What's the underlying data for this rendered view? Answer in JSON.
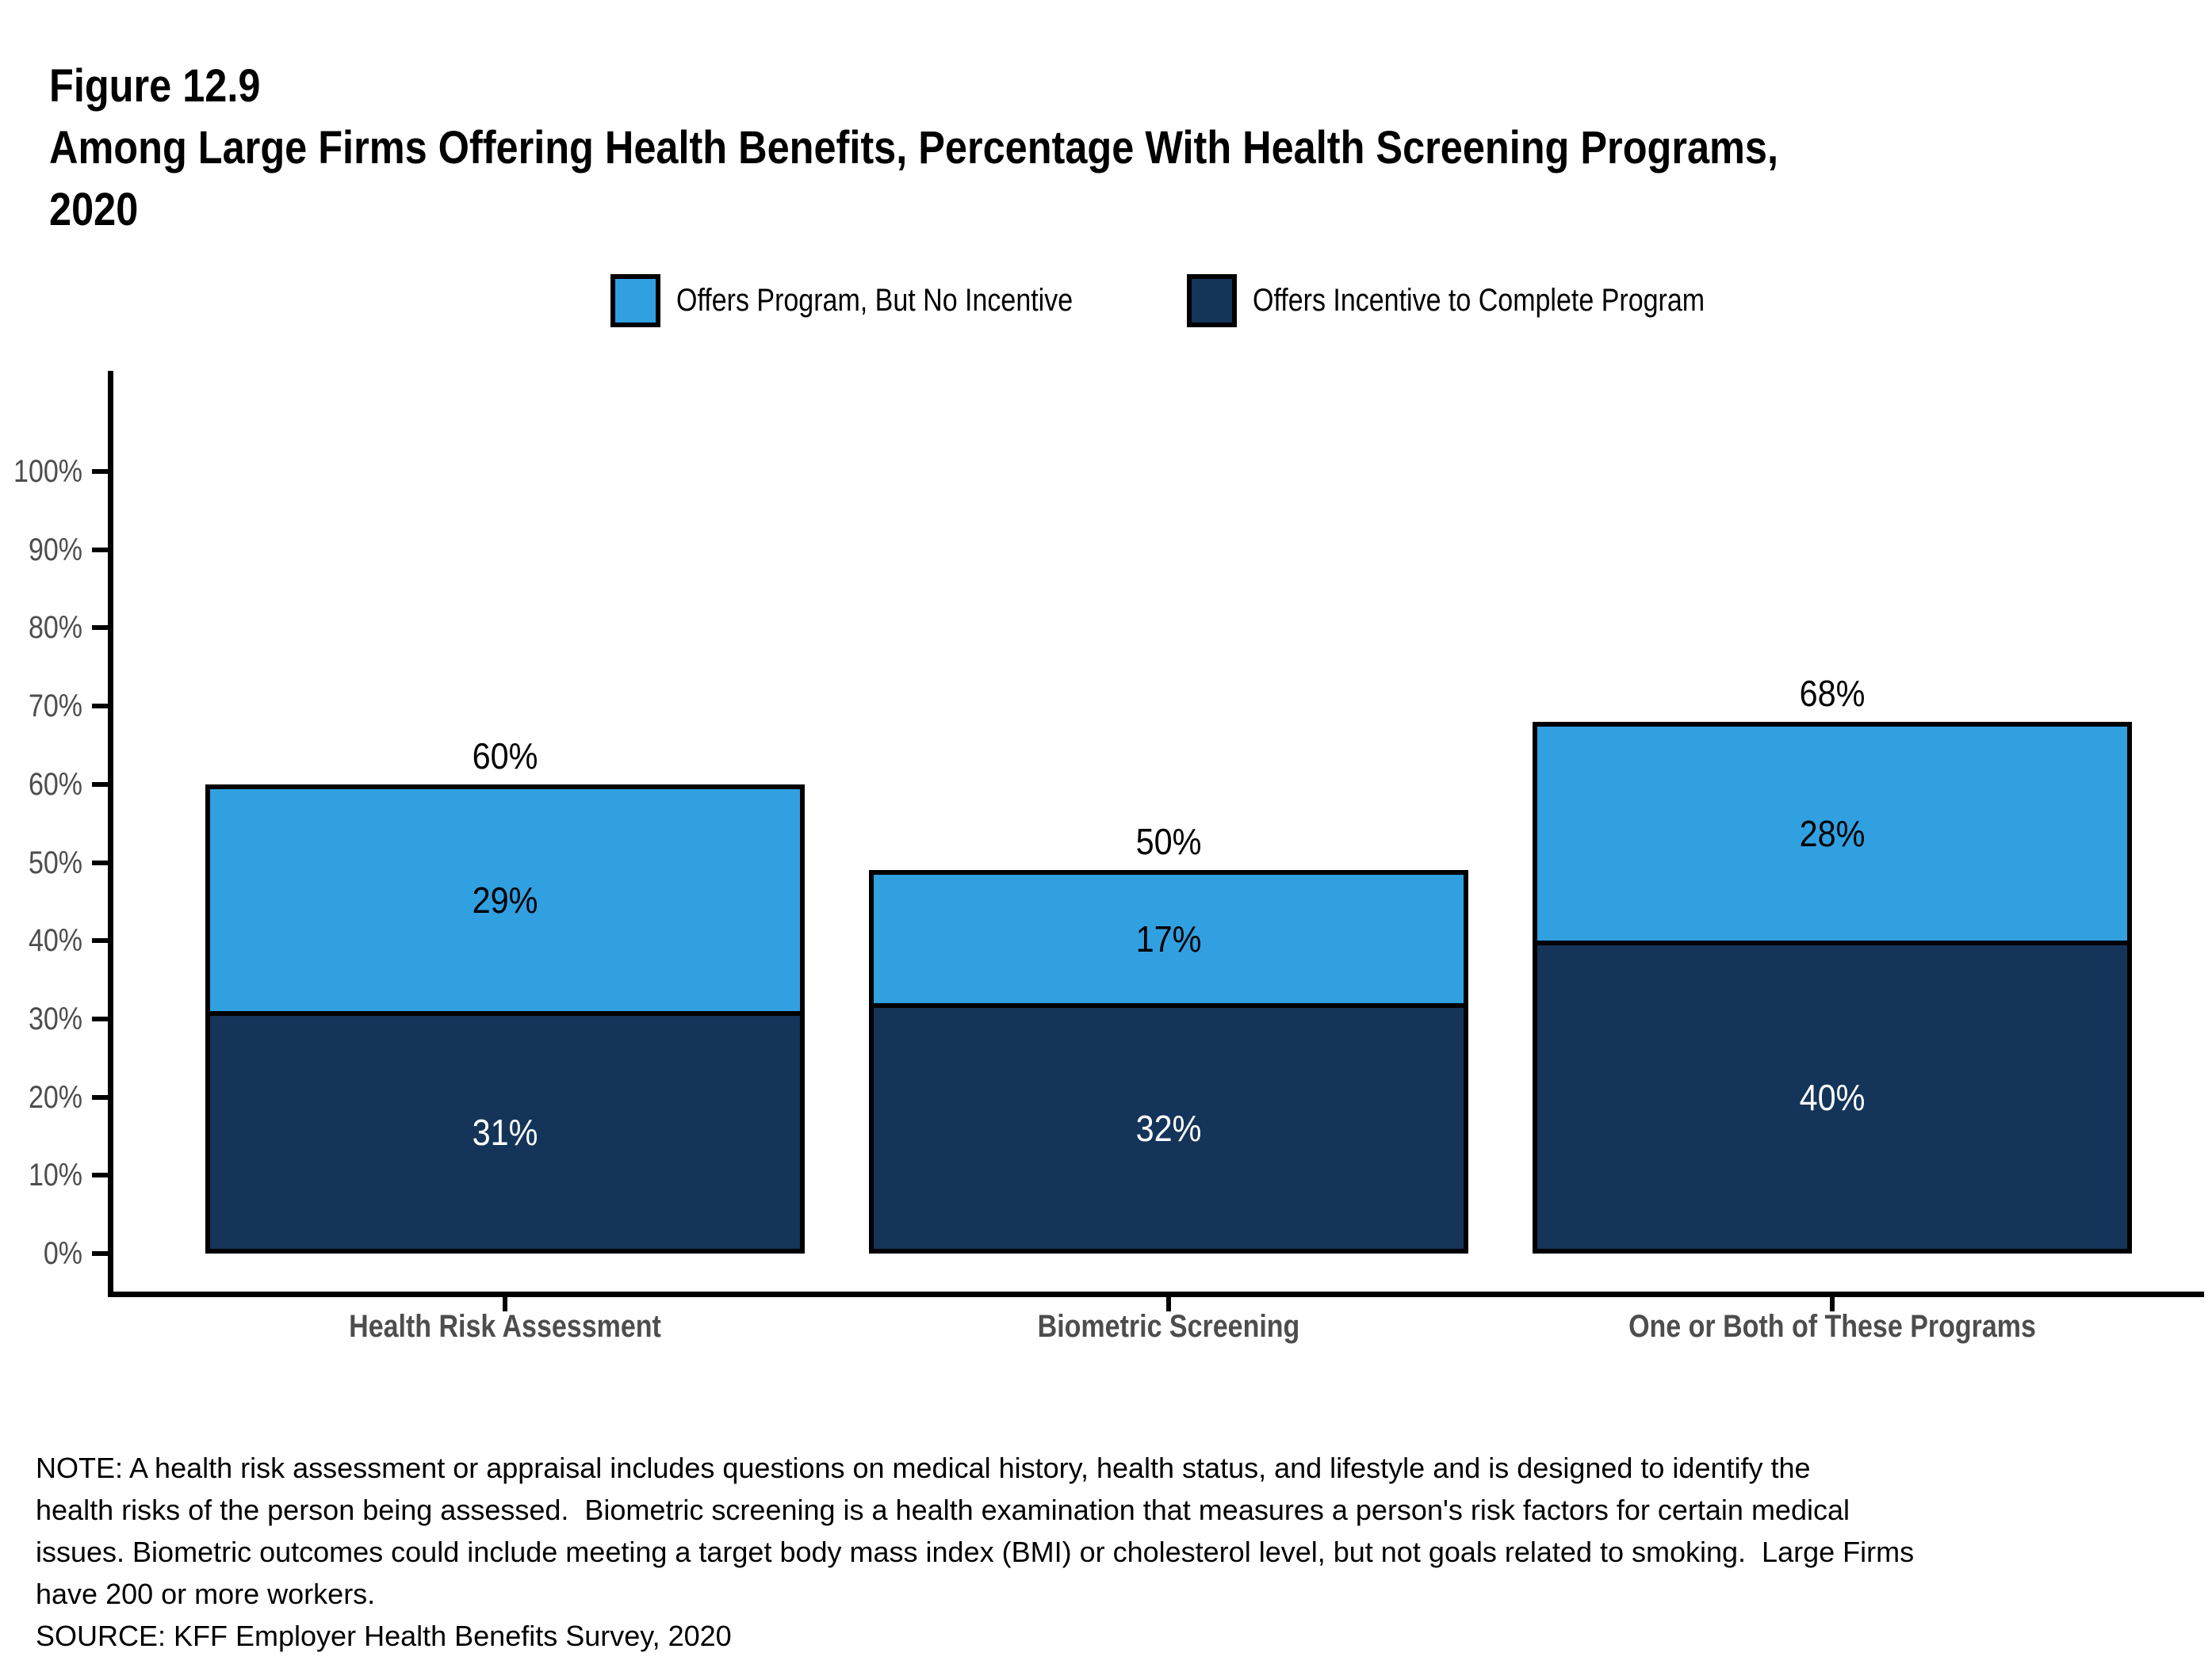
{
  "header": {
    "figure_label": "Figure 12.9",
    "title_line1": "Among Large Firms Offering Health Benefits, Percentage With Health Screening Programs,",
    "title_line2": "2020"
  },
  "legend": {
    "items": [
      {
        "label": "Offers Program, But No Incentive",
        "color": "#31A0E1"
      },
      {
        "label": "Offers Incentive to Complete Program",
        "color": "#143459"
      }
    ]
  },
  "chart_data": {
    "type": "bar",
    "stacked": true,
    "title": "Among Large Firms Offering Health Benefits, Percentage With Health Screening Programs, 2020",
    "categories": [
      "Health Risk Assessment",
      "Biometric Screening",
      "One or Both of These Programs"
    ],
    "series": [
      {
        "name": "Offers Incentive to Complete Program",
        "color": "#143459",
        "values": [
          31,
          32,
          40
        ],
        "value_labels": [
          "31%",
          "32%",
          "40%"
        ],
        "label_color": "#ffffff"
      },
      {
        "name": "Offers Program, But No Incentive",
        "color": "#31A0E1",
        "values": [
          29,
          17,
          28
        ],
        "value_labels": [
          "29%",
          "17%",
          "28%"
        ],
        "label_color": "#000000"
      }
    ],
    "totals": [
      "60%",
      "50%",
      "68%"
    ],
    "ylim": [
      0,
      100
    ],
    "yticks": [
      "0%",
      "10%",
      "20%",
      "30%",
      "40%",
      "50%",
      "60%",
      "70%",
      "80%",
      "90%",
      "100%"
    ],
    "xlabel": "",
    "ylabel": "",
    "grid": false,
    "legend_position": "top",
    "axis_text_color": "#4d4d4d",
    "axis_line_color": "#000000"
  },
  "footer": {
    "note_lines": [
      "NOTE: A health risk assessment or appraisal includes questions on medical history, health status, and lifestyle and is designed to identify the",
      "health risks of the person being assessed.  Biometric screening is a health examination that measures a person's risk factors for certain medical",
      "issues. Biometric outcomes could include meeting a target body mass index (BMI) or cholesterol level, but not goals related to smoking.  Large Firms",
      "have 200 or more workers.",
      "SOURCE: KFF Employer Health Benefits Survey, 2020"
    ]
  }
}
